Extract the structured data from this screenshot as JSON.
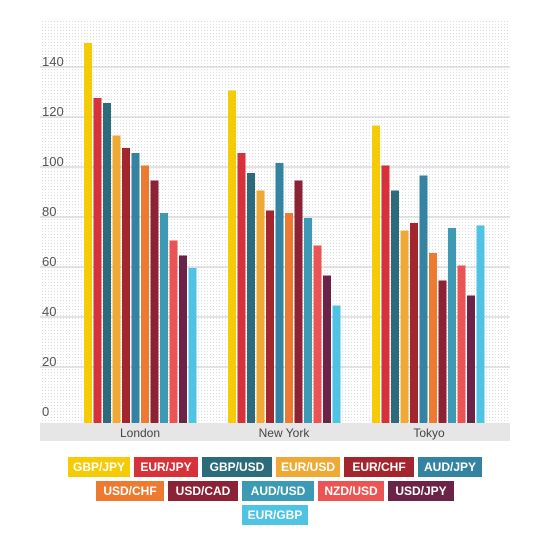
{
  "chart_data": {
    "type": "bar",
    "title": "",
    "xlabel": "",
    "ylabel": "",
    "ylim": [
      0,
      155
    ],
    "yticks": [
      0,
      20,
      40,
      60,
      80,
      100,
      120,
      140
    ],
    "grid": true,
    "legend_position": "bottom",
    "categories": [
      "London",
      "New York",
      "Tokyo"
    ],
    "series": [
      {
        "name": "GBP/JPY",
        "color": "#f5cb05",
        "values": [
          152,
          133,
          119
        ]
      },
      {
        "name": "EUR/JPY",
        "color": "#d7323a",
        "values": [
          130,
          108,
          103
        ]
      },
      {
        "name": "GBP/USD",
        "color": "#2b6b7a",
        "values": [
          128,
          100,
          93
        ]
      },
      {
        "name": "EUR/USD",
        "color": "#efa935",
        "values": [
          115,
          93,
          77
        ]
      },
      {
        "name": "EUR/CHF",
        "color": "#a3262f",
        "values": [
          110,
          85,
          80
        ]
      },
      {
        "name": "AUD/JPY",
        "color": "#3483a0",
        "values": [
          108,
          104,
          99
        ]
      },
      {
        "name": "USD/CHF",
        "color": "#ec7a30",
        "values": [
          103,
          84,
          68
        ]
      },
      {
        "name": "USD/CAD",
        "color": "#8b2236",
        "values": [
          97,
          97,
          57
        ]
      },
      {
        "name": "AUD/USD",
        "color": "#3c9ab5",
        "values": [
          84,
          82,
          78
        ]
      },
      {
        "name": "NZD/USD",
        "color": "#ea5453",
        "values": [
          73,
          71,
          63
        ]
      },
      {
        "name": "USD/JPY",
        "color": "#6b2447",
        "values": [
          67,
          59,
          51
        ]
      },
      {
        "name": "EUR/GBP",
        "color": "#4fc3e3",
        "values": [
          62,
          47,
          79
        ]
      }
    ]
  }
}
